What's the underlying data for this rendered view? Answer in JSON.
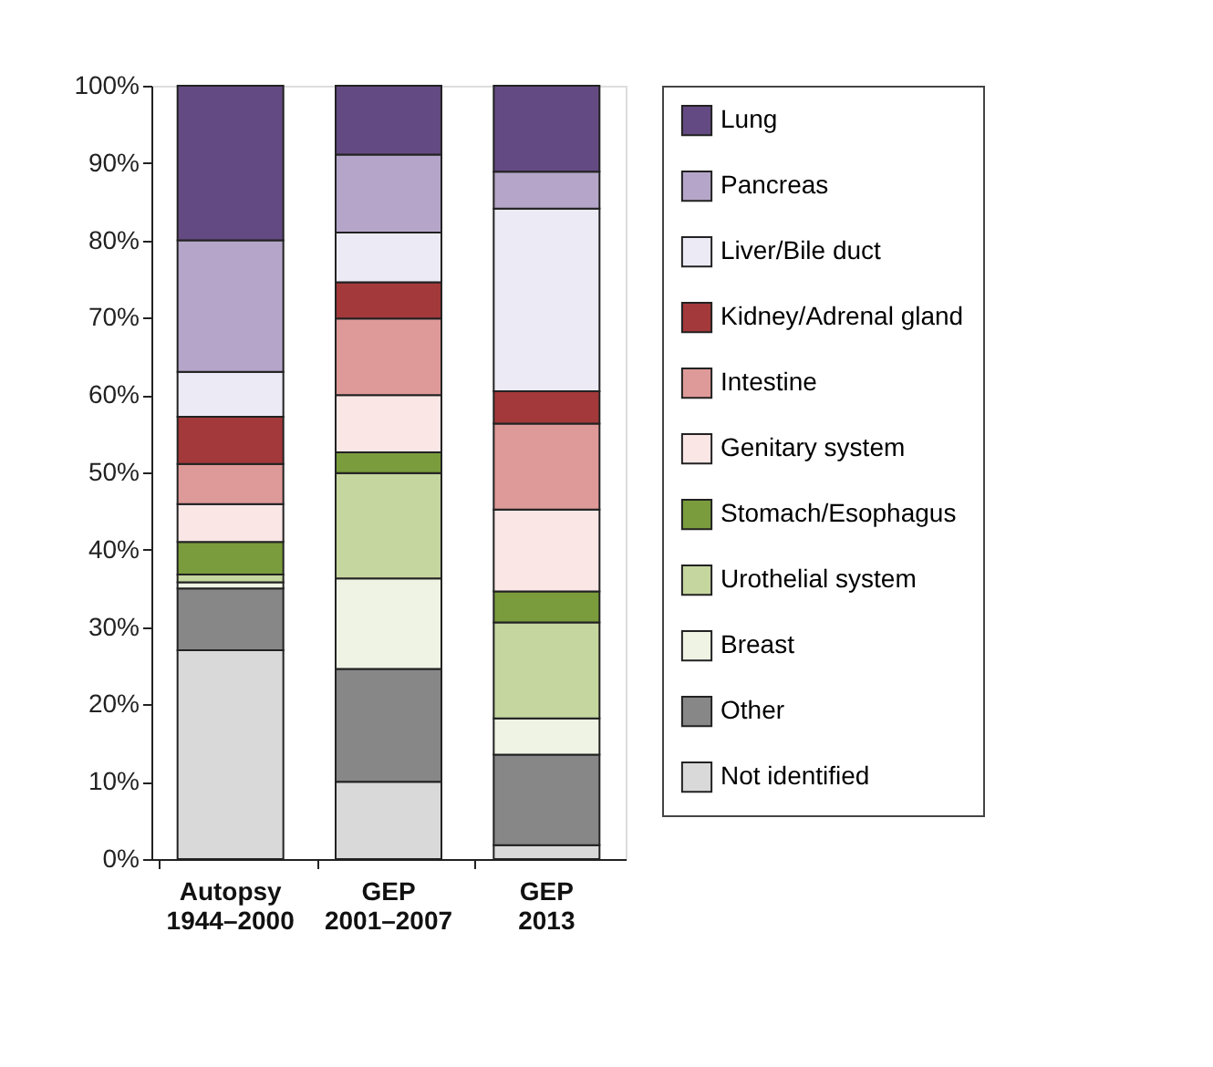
{
  "chart_data": {
    "type": "bar",
    "stacked": true,
    "categories": [
      "Autopsy\n1944–2000",
      "GEP\n2001–2007",
      "GEP\n2013"
    ],
    "series": [
      {
        "name": "Not identified",
        "color": "#d9d9d9",
        "values": [
          27,
          10,
          1.8
        ]
      },
      {
        "name": "Other",
        "color": "#878787",
        "values": [
          8,
          14.6,
          11.7
        ]
      },
      {
        "name": "Breast",
        "color": "#eef3e4",
        "values": [
          0.8,
          11.7,
          4.7
        ]
      },
      {
        "name": "Urothelial system",
        "color": "#c6d69f",
        "values": [
          1,
          13.6,
          12.4
        ]
      },
      {
        "name": "Stomach/Esophagus",
        "color": "#7a9c3c",
        "values": [
          4.2,
          2.7,
          4
        ]
      },
      {
        "name": "Genitary system",
        "color": "#fbe6e6",
        "values": [
          4.9,
          7.4,
          10.6
        ]
      },
      {
        "name": "Intestine",
        "color": "#de9a98",
        "values": [
          5.2,
          9.9,
          11.1
        ]
      },
      {
        "name": "Kidney/Adrenal gland",
        "color": "#a3393a",
        "values": [
          6.1,
          4.7,
          4.2
        ]
      },
      {
        "name": "Liver/Bile duct",
        "color": "#eceaf4",
        "values": [
          5.8,
          6.4,
          23.6
        ]
      },
      {
        "name": "Pancreas",
        "color": "#b5a6c9",
        "values": [
          17,
          10.1,
          4.8
        ]
      },
      {
        "name": "Lung",
        "color": "#644a82",
        "values": [
          20,
          8.9,
          11.1
        ]
      }
    ],
    "ylim": [
      0,
      100
    ],
    "yticks": [
      {
        "value": 0,
        "label": "0%"
      },
      {
        "value": 10,
        "label": "10%"
      },
      {
        "value": 20,
        "label": "20%"
      },
      {
        "value": 30,
        "label": "30%"
      },
      {
        "value": 40,
        "label": "40%"
      },
      {
        "value": 50,
        "label": "50%"
      },
      {
        "value": 60,
        "label": "60%"
      },
      {
        "value": 70,
        "label": "70%"
      },
      {
        "value": 80,
        "label": "80%"
      },
      {
        "value": 90,
        "label": "90%"
      },
      {
        "value": 100,
        "label": "100%"
      }
    ],
    "grid": false,
    "legend": "right"
  }
}
